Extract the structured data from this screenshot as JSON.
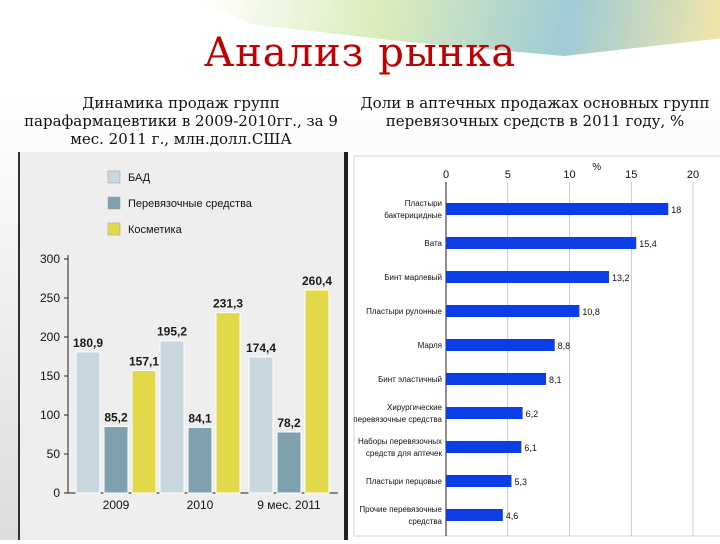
{
  "title": "Анализ рынка",
  "left_caption": "Динамика продаж групп парафармацевтики в 2009-2010гг., за 9 мес. 2011 г., млн.долл.США",
  "right_caption": "Доли в аптечных продажах основных групп перевязочных средств в 2011 году, %",
  "colors": {
    "title": "#c00000",
    "bad": "#c9d7df",
    "perev": "#7fa0ae",
    "kosm": "#e2d94a",
    "hbar": "#0b3ee6"
  },
  "chart_data": [
    {
      "type": "bar",
      "categories": [
        "2009",
        "2010",
        "9 мес. 2011"
      ],
      "series": [
        {
          "name": "БАД",
          "values": [
            180.9,
            195.2,
            174.4
          ],
          "labels": [
            "180,9",
            "195,2",
            "174,4"
          ]
        },
        {
          "name": "Перевязочные средства",
          "values": [
            85.2,
            84.1,
            78.2
          ],
          "labels": [
            "85,2",
            "84,1",
            "78,2"
          ]
        },
        {
          "name": "Косметика",
          "values": [
            157.1,
            231.3,
            260.4
          ],
          "labels": [
            "157,1",
            "231,3",
            "260,4"
          ]
        }
      ],
      "yticks": [
        0,
        50,
        100,
        150,
        200,
        250,
        300
      ],
      "ylim": [
        0,
        300
      ],
      "legend": "top-left"
    },
    {
      "type": "bar",
      "orientation": "horizontal",
      "unit_label": "%",
      "categories": [
        [
          "Пластыри",
          "бактерицидные"
        ],
        [
          "Вата"
        ],
        [
          "Бинт марлевый"
        ],
        [
          "Пластыри рулонные"
        ],
        [
          "Марля"
        ],
        [
          "Бинт эластичный"
        ],
        [
          "Хирургические",
          "перевязочные средства"
        ],
        [
          "Наборы перевязочных",
          "средств для аптечек"
        ],
        [
          "Пластыри перцовые"
        ],
        [
          "Прочие перевязочные",
          "средства"
        ]
      ],
      "values": [
        18,
        15.4,
        13.2,
        10.8,
        8.8,
        8.1,
        6.2,
        6.1,
        5.3,
        4.6
      ],
      "labels": [
        "18",
        "15,4",
        "13,2",
        "10,8",
        "8,8",
        "8,1",
        "6,2",
        "6,1",
        "5,3",
        "4,6"
      ],
      "xticks": [
        0,
        5,
        10,
        15,
        20
      ],
      "xlim": [
        0,
        20
      ]
    }
  ]
}
